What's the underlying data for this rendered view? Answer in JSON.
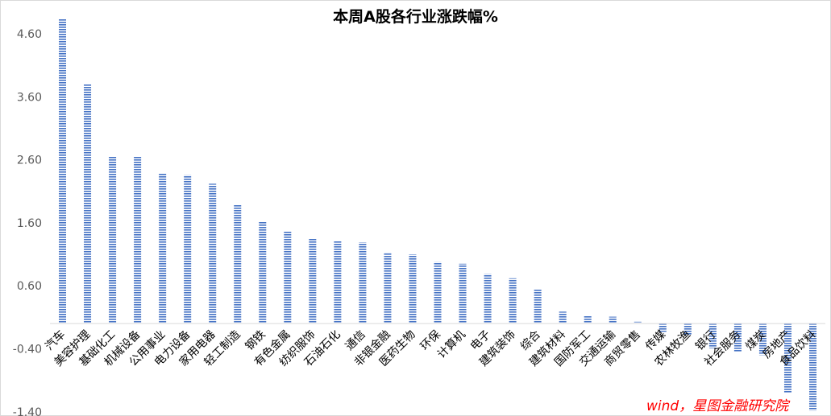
{
  "chart_data": {
    "type": "bar",
    "title": "本周A股各行业涨跌幅%",
    "xlabel": "",
    "ylabel": "",
    "ylim": [
      -1.4,
      4.9
    ],
    "yticks": [
      4.6,
      3.6,
      2.6,
      1.6,
      0.6,
      -0.4,
      -1.4
    ],
    "ytick_labels": [
      "4.60",
      "3.60",
      "2.60",
      "1.60",
      "0.60",
      "-0.40",
      "-1.40"
    ],
    "grid": false,
    "legend": "none",
    "bar_color": "#4472c4",
    "categories": [
      "汽车",
      "美容护理",
      "基础化工",
      "机械设备",
      "公用事业",
      "电力设备",
      "家用电器",
      "轻工制造",
      "钢铁",
      "有色金属",
      "纺织服饰",
      "石油石化",
      "通信",
      "非银金融",
      "医药生物",
      "环保",
      "计算机",
      "电子",
      "建筑装饰",
      "综合",
      "建筑材料",
      "国防军工",
      "交通运输",
      "商贸零售",
      "传媒",
      "农林牧渔",
      "银行",
      "社会服务",
      "煤炭",
      "房地产",
      "食品饮料"
    ],
    "values": [
      4.83,
      3.8,
      2.65,
      2.65,
      2.38,
      2.36,
      2.22,
      1.88,
      1.62,
      1.46,
      1.35,
      1.31,
      1.29,
      1.13,
      1.1,
      0.98,
      0.95,
      0.79,
      0.72,
      0.55,
      0.19,
      0.13,
      0.11,
      0.03,
      -0.13,
      -0.19,
      -0.39,
      -0.45,
      -0.5,
      -1.1,
      -1.38
    ]
  },
  "source_note": "wind，星图金融研究院"
}
